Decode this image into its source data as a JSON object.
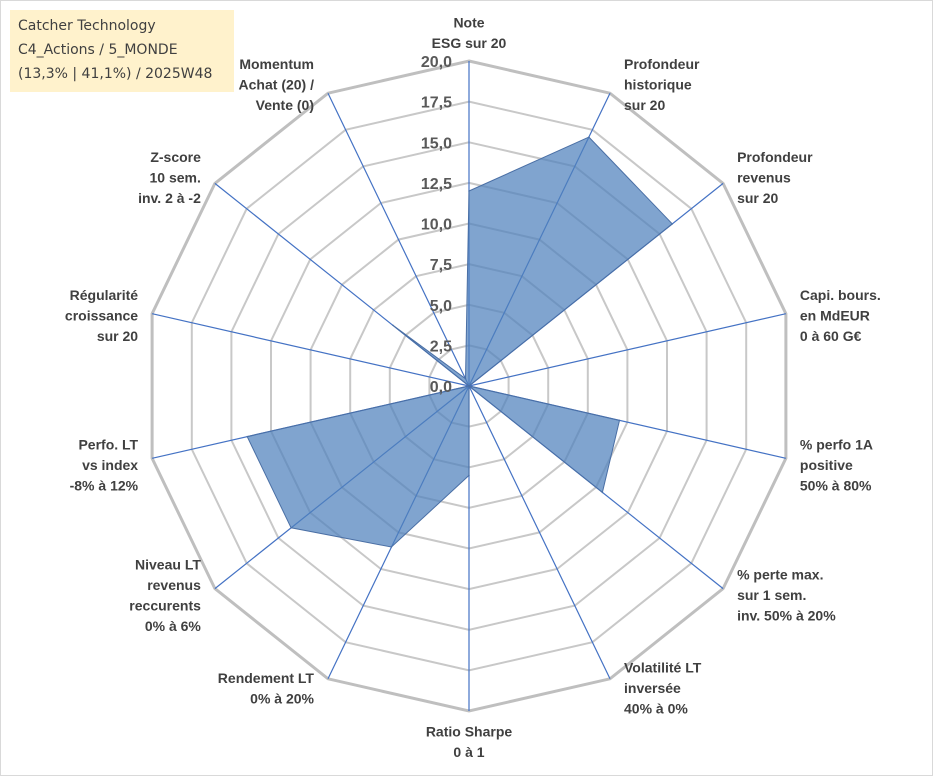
{
  "info_box": {
    "line1": "Catcher Technology",
    "line2": "C4_Actions / 5_MONDE",
    "line3": "(13,3% | 41,1%) / 2025W48"
  },
  "chart_data": {
    "type": "radar",
    "title": "",
    "axes": [
      [
        "Note",
        "ESG sur 20"
      ],
      [
        "Profondeur",
        "historique",
        "sur 20"
      ],
      [
        "Profondeur",
        "revenus",
        "sur 20"
      ],
      [
        "Capi. bours.",
        "en MdEUR",
        "0 à 60 G€"
      ],
      [
        "% perfo 1A",
        "positive",
        "50% à 80%"
      ],
      [
        "% perte max.",
        "sur 1 sem.",
        "inv. 50% à 20%"
      ],
      [
        "Volatilité LT",
        "inversée",
        "40% à 0%"
      ],
      [
        "Ratio Sharpe",
        "0 à 1"
      ],
      [
        "Rendement LT",
        "0% à 20%"
      ],
      [
        "Niveau LT",
        "revenus",
        "reccurents",
        "0% à 6%"
      ],
      [
        "Perfo. LT",
        "vs index",
        "-8% à 12%"
      ],
      [
        "Régularité",
        "croissance",
        "sur 20"
      ],
      [
        "Z-score",
        "10 sem.",
        "inv. 2 à -2"
      ],
      [
        "Momentum",
        "Achat (20) /",
        "Vente (0)"
      ]
    ],
    "series": [
      {
        "values": [
          12.0,
          17.0,
          16.0,
          0.0,
          9.5,
          10.5,
          0.0,
          5.5,
          11.0,
          14.0,
          14.0,
          0.0,
          6.0,
          0.5
        ]
      }
    ],
    "rlim": [
      0,
      20
    ],
    "r_ticks": [
      "0,0",
      "2,5",
      "5,0",
      "7,5",
      "10,0",
      "12,5",
      "15,0",
      "17,5",
      "20,0"
    ],
    "r_tick_values": [
      0,
      2.5,
      5,
      7.5,
      10,
      12.5,
      15,
      17.5,
      20
    ],
    "grid": true,
    "legend": "none",
    "colors": {
      "fill": "#4f81bd",
      "fill_edge": "#4a6fa5",
      "spoke": "#4472c4",
      "grid": "#c8c8c8",
      "outer_grid": "#bfbfbf"
    }
  }
}
